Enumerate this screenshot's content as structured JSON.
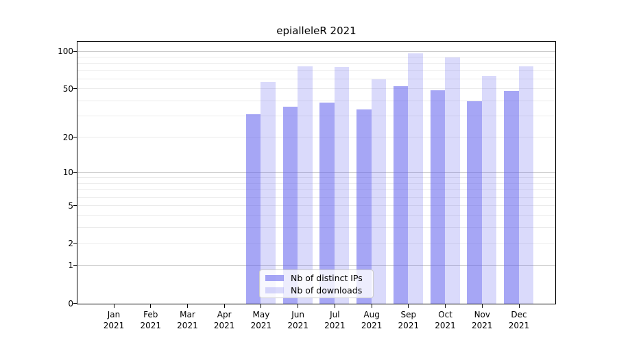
{
  "title": "epialleleR 2021",
  "legend": {
    "items": [
      {
        "label": "Nb of distinct IPs",
        "series": "ips"
      },
      {
        "label": "Nb of downloads",
        "series": "downloads"
      }
    ]
  },
  "y_axis": {
    "scale": "log1p",
    "tick_labels": [
      "0",
      "1",
      "2",
      "5",
      "10",
      "20",
      "50",
      "100"
    ]
  },
  "x_axis": {
    "months": [
      {
        "month": "Jan",
        "year": "2021"
      },
      {
        "month": "Feb",
        "year": "2021"
      },
      {
        "month": "Mar",
        "year": "2021"
      },
      {
        "month": "Apr",
        "year": "2021"
      },
      {
        "month": "May",
        "year": "2021"
      },
      {
        "month": "Jun",
        "year": "2021"
      },
      {
        "month": "Jul",
        "year": "2021"
      },
      {
        "month": "Aug",
        "year": "2021"
      },
      {
        "month": "Sep",
        "year": "2021"
      },
      {
        "month": "Oct",
        "year": "2021"
      },
      {
        "month": "Nov",
        "year": "2021"
      },
      {
        "month": "Dec",
        "year": "2021"
      }
    ]
  },
  "colors": {
    "bar_base": "#6363ed",
    "ips_alpha": "0.57",
    "downloads_alpha": "0.24",
    "grid_major": "#c6c6c6",
    "grid_minor": "#ebebeb",
    "spine": "#000000",
    "legend_border": "#cccccc",
    "text": "#000000"
  },
  "chart_data": {
    "type": "bar",
    "title": "epialleleR 2021",
    "categories": [
      "Jan 2021",
      "Feb 2021",
      "Mar 2021",
      "Apr 2021",
      "May 2021",
      "Jun 2021",
      "Jul 2021",
      "Aug 2021",
      "Sep 2021",
      "Oct 2021",
      "Nov 2021",
      "Dec 2021"
    ],
    "series": [
      {
        "name": "Nb of distinct IPs",
        "values": [
          0,
          0,
          0,
          0,
          31,
          36,
          39,
          34,
          53,
          49,
          40,
          48
        ]
      },
      {
        "name": "Nb of downloads",
        "values": [
          0,
          0,
          0,
          0,
          57,
          76,
          75,
          60,
          97,
          90,
          64,
          76
        ]
      }
    ],
    "xlabel": "",
    "ylabel": "",
    "yscale": "log1p",
    "ylim": [
      0,
      119
    ],
    "yticks": [
      0,
      1,
      2,
      5,
      10,
      20,
      50,
      100
    ],
    "grid_major_values": [
      1,
      10,
      100
    ],
    "grid_minor_values": [
      2,
      3,
      4,
      5,
      6,
      7,
      8,
      9,
      20,
      30,
      40,
      50,
      60,
      70,
      80,
      90
    ],
    "legend_position": "lower center",
    "grid": "horizontal"
  }
}
